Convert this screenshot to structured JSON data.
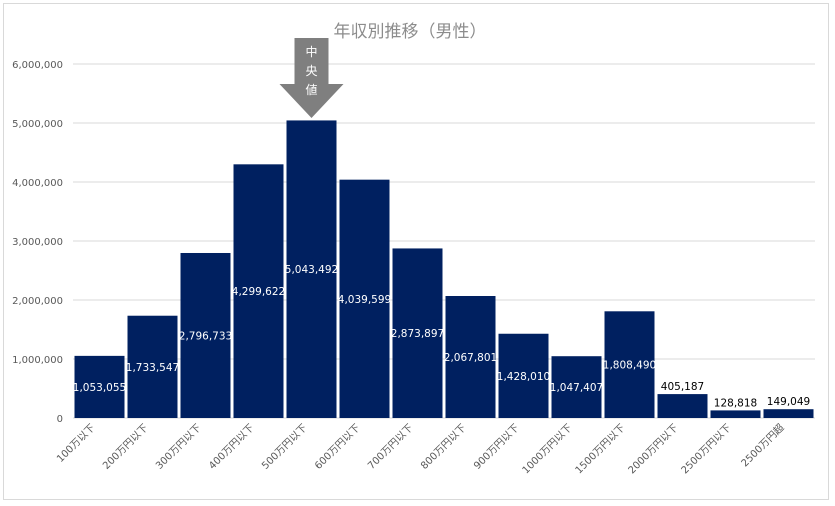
{
  "chart_data": {
    "type": "bar",
    "title": "年収別推移（男性）",
    "categories": [
      "100万以下",
      "200万円以下",
      "300万円以下",
      "400万円以下",
      "500万円以下",
      "600万円以下",
      "700万円以下",
      "800万円以下",
      "900万円以下",
      "1000万円以下",
      "1500万円以下",
      "2000万円以下",
      "2500万円以下",
      "2500万円超"
    ],
    "values": [
      1053055,
      1733547,
      2796733,
      4299622,
      5043492,
      4039599,
      2873897,
      2067801,
      1428010,
      1047407,
      1808490,
      405187,
      128818,
      149049
    ],
    "data_labels": [
      "1,053,055",
      "1,733,547",
      "2,796,733",
      "4,299,622",
      "5,043,492",
      "4,039,599",
      "2,873,897",
      "2,067,801",
      "1,428,010",
      "1,047,407",
      "1,808,490",
      "405,187",
      "128,818",
      "149,049"
    ],
    "yticks": [
      0,
      1000000,
      2000000,
      3000000,
      4000000,
      5000000,
      6000000
    ],
    "ytick_labels": [
      "0",
      "1,000,000",
      "2,000,000",
      "3,000,000",
      "4,000,000",
      "5,000,000",
      "6,000,000"
    ],
    "ylim": [
      0,
      6000000
    ],
    "grid": true,
    "bar_color": "#002060",
    "annotation": {
      "text": [
        "中",
        "央",
        "値"
      ],
      "category": "500万円以下",
      "color": "#7f7f7f"
    }
  }
}
